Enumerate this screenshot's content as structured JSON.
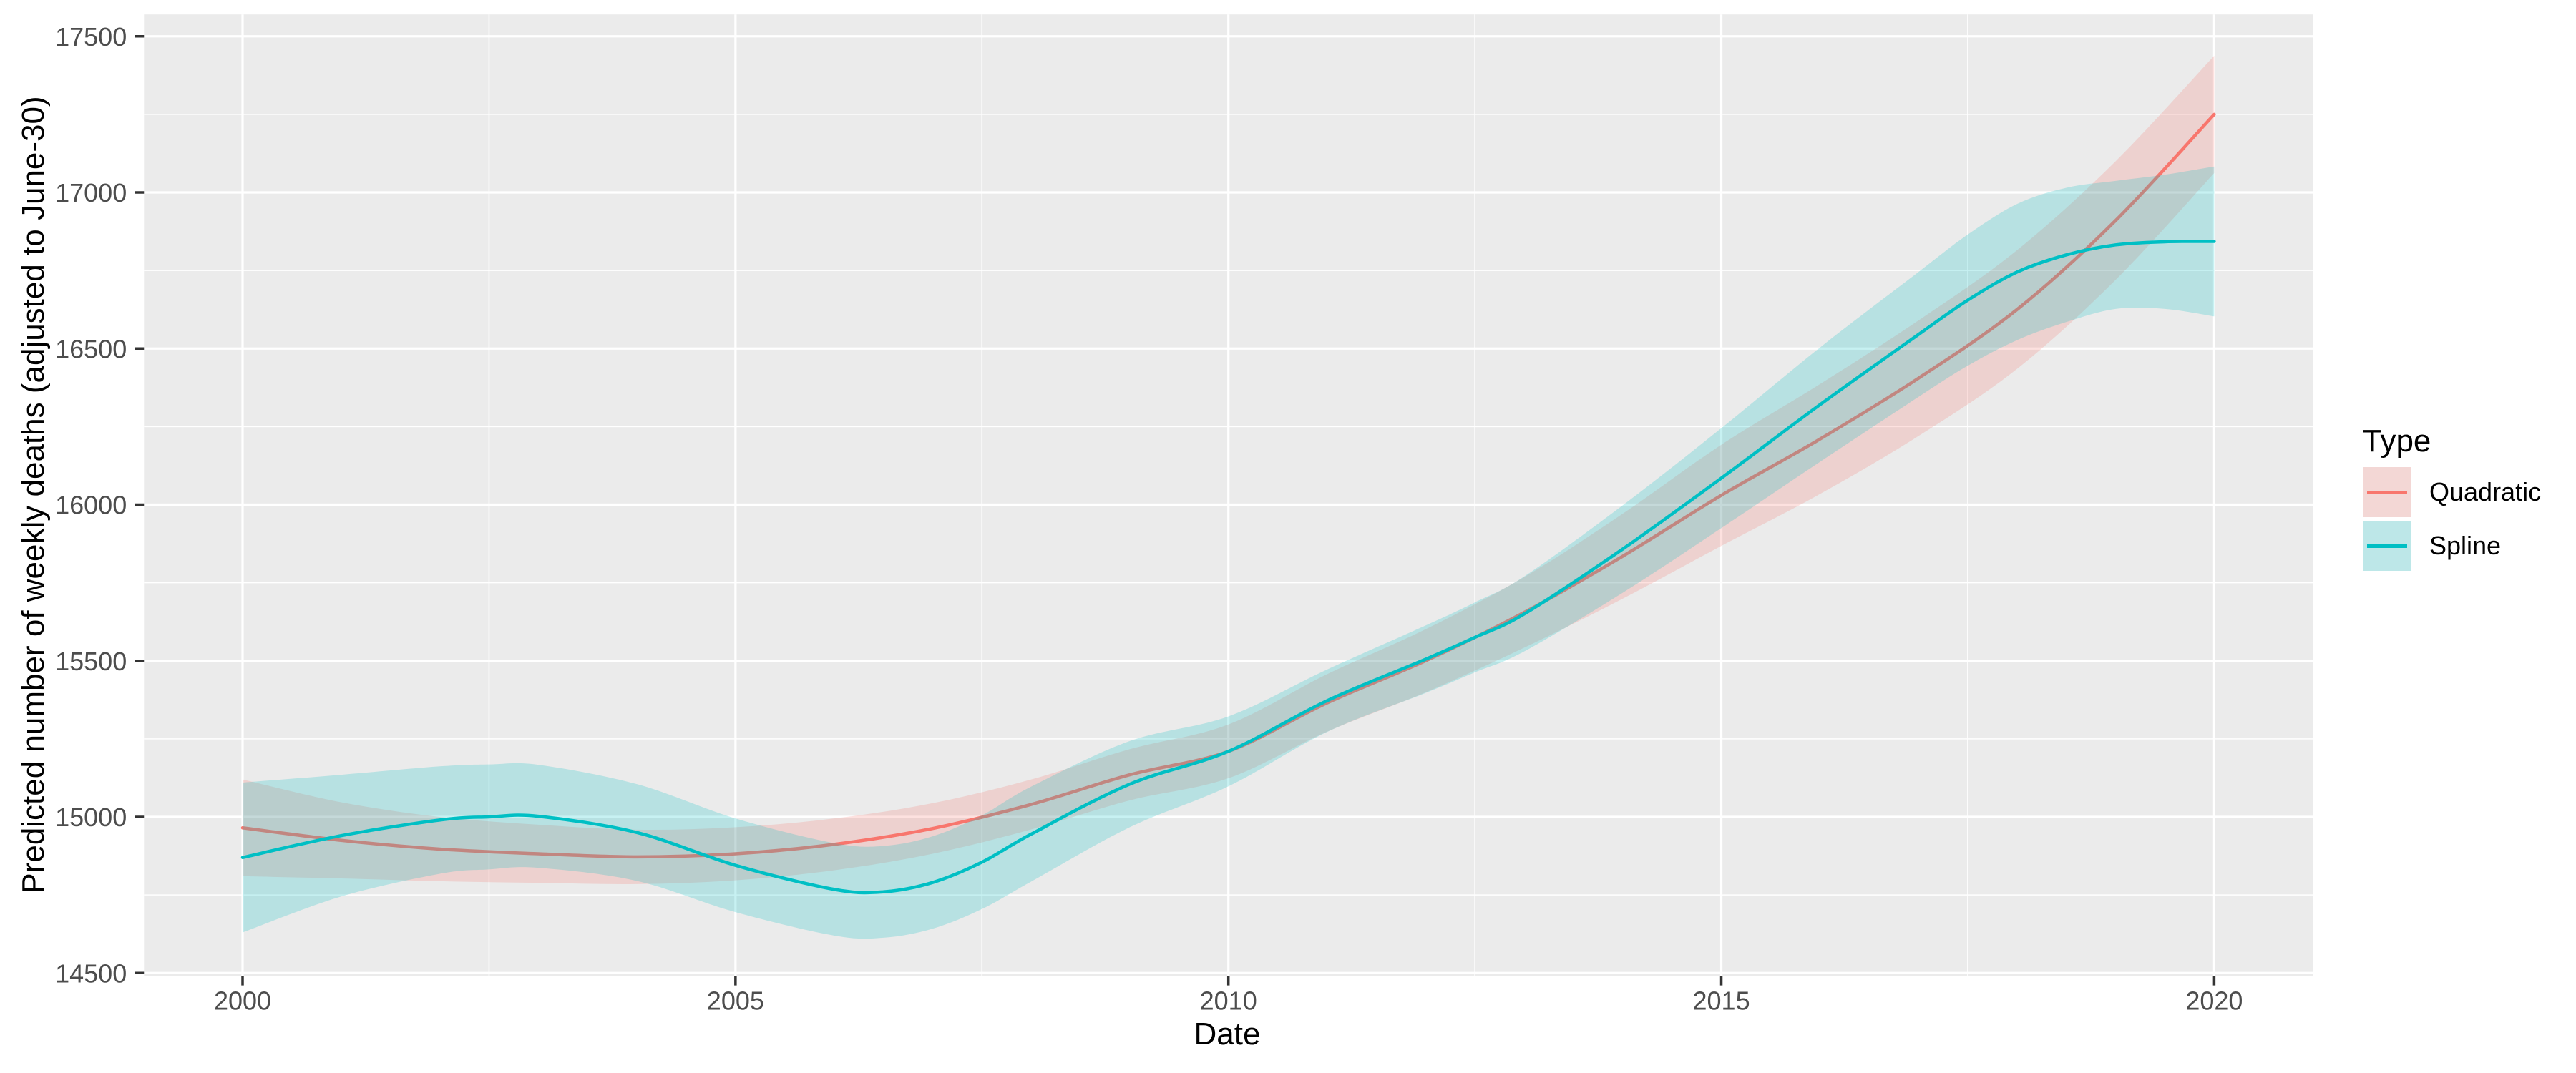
{
  "chart_data": {
    "type": "line",
    "title": "",
    "xlabel": "Date",
    "ylabel": "Predicted number of weekly deaths (adjusted to June-30)",
    "x_ticks": [
      2000,
      2005,
      2010,
      2015,
      2020
    ],
    "x_minor_ticks": [
      2002.5,
      2007.5,
      2012.5,
      2017.5
    ],
    "y_ticks": [
      14500,
      15000,
      15500,
      16000,
      16500,
      17000,
      17500
    ],
    "y_minor_ticks": [
      14750,
      15250,
      15750,
      16250,
      16750,
      17250
    ],
    "x_data_range": [
      2000,
      2020
    ],
    "x_panel_range": [
      1999.0,
      2021.0
    ],
    "y_panel_range": [
      14490,
      17570
    ],
    "grid": true,
    "legend_position": "right",
    "legend_title": "Type",
    "ribbon_opacity": 0.22,
    "series": [
      {
        "name": "Quadratic",
        "color": "#F8766D",
        "x": [
          2000,
          2001,
          2002,
          2003,
          2004,
          2005,
          2006,
          2007,
          2008,
          2009,
          2010,
          2011,
          2012,
          2013,
          2014,
          2015,
          2016,
          2017,
          2018,
          2019,
          2020
        ],
        "y": [
          14965,
          14925,
          14897,
          14882,
          14872,
          14882,
          14912,
          14963,
          15040,
          15135,
          15210,
          15365,
          15500,
          15655,
          15835,
          16030,
          16210,
          16405,
          16625,
          16910,
          17250
        ],
        "ci_halfwidth": [
          155,
          122,
          103,
          93,
          87,
          85,
          83,
          81,
          80,
          82,
          86,
          92,
          101,
          113,
          136,
          162,
          176,
          185,
          190,
          190,
          188
        ]
      },
      {
        "name": "Spline",
        "color": "#00BFC4",
        "x": [
          2000,
          2001,
          2002,
          2002.5,
          2003,
          2004,
          2005,
          2006,
          2006.5,
          2007,
          2007.5,
          2008,
          2009,
          2010,
          2011,
          2012,
          2012.5,
          2013,
          2014,
          2015,
          2016,
          2017,
          2017.5,
          2018,
          2018.5,
          2019,
          2019.5,
          2020
        ],
        "y": [
          14870,
          14940,
          14990,
          15000,
          15002,
          14950,
          14845,
          14768,
          14760,
          14790,
          14855,
          14945,
          15105,
          15210,
          15372,
          15505,
          15575,
          15650,
          15858,
          16085,
          16320,
          16545,
          16655,
          16745,
          16800,
          16832,
          16842,
          16843
        ],
        "ci_halfwidth": [
          240,
          195,
          172,
          168,
          165,
          155,
          150,
          148,
          147,
          148,
          150,
          152,
          138,
          112,
          100,
          108,
          112,
          120,
          140,
          160,
          183,
          200,
          210,
          218,
          215,
          205,
          215,
          240
        ]
      }
    ]
  },
  "colors": {
    "background": "#FFFFFF",
    "panel_background": "#EBEBEB",
    "gridline": "#FFFFFF",
    "tick_mark": "#333333",
    "tick_label": "#4D4D4D",
    "axis_title": "#000000",
    "legend_key_background": "#F2F2F2"
  },
  "legend": {
    "title": "Type",
    "entries": [
      "Quadratic",
      "Spline"
    ]
  }
}
